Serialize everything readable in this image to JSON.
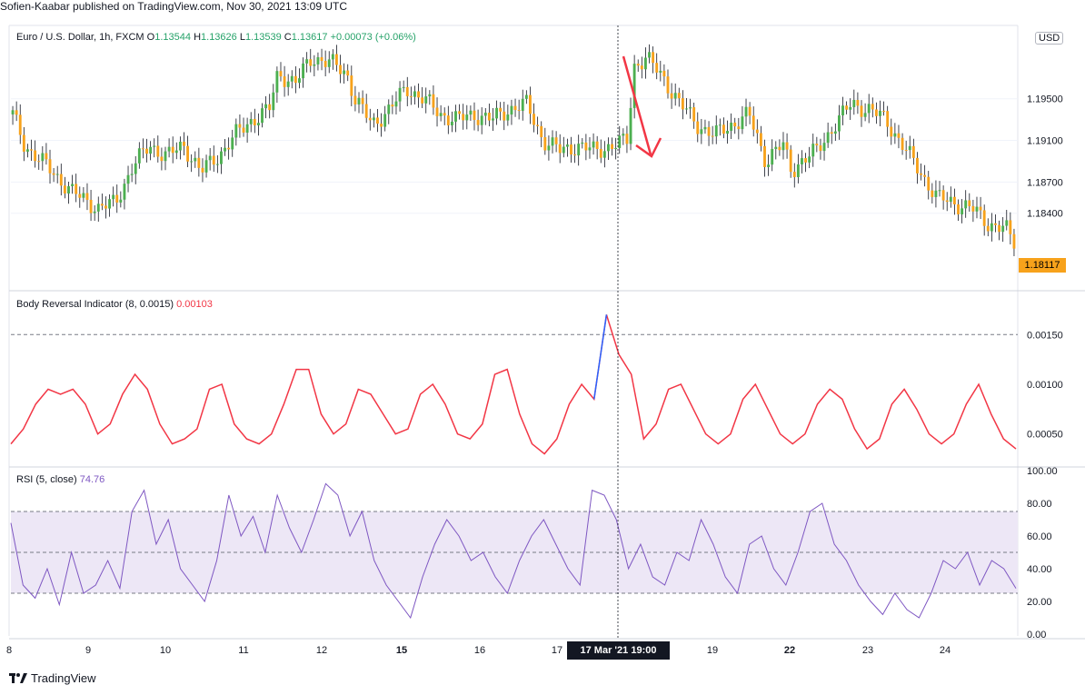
{
  "header": {
    "publisher": "Sofien-Kaabar published on TradingView.com, Nov 30, 2021 13:09 UTC"
  },
  "main_pane": {
    "symbol": "Euro / U.S. Dollar, 1h, FXCM",
    "o_label": "O",
    "o_value": "1.13544",
    "h_label": "H",
    "h_value": "1.13626",
    "l_label": "L",
    "l_value": "1.13539",
    "c_label": "C",
    "c_value": "1.13617",
    "change": "+0.00073 (+0.06%)",
    "currency": "USD",
    "last_price": "1.18117"
  },
  "indicator_pane": {
    "name": "Body Reversal Indicator (8, 0.0015)",
    "value": "0.00103"
  },
  "rsi_pane": {
    "name": "RSI (5, close)",
    "value": "74.76"
  },
  "crosshair_time": "17 Mar '21   19:00",
  "footer": {
    "brand": "TradingView"
  },
  "colors": {
    "up_candle": "#4caf50",
    "down_candle": "#f7a21b",
    "indicator_line": "#f23645",
    "indicator_spike": "#2962ff",
    "rsi_line": "#7e57c2",
    "rsi_band": "#ede7f6",
    "arrow": "#f23645"
  },
  "chart_data": [
    {
      "type": "candlestick",
      "x_axis_labels": [
        "8",
        "9",
        "10",
        "11",
        "12",
        "15",
        "16",
        "17",
        "19",
        "22",
        "23",
        "24"
      ],
      "y_tick_labels": [
        "1.19500",
        "1.19100",
        "1.18700",
        "1.18400"
      ],
      "ylim": [
        1.1783,
        1.201
      ],
      "close_path": [
        [
          0,
          1.1935
        ],
        [
          7,
          1.1905
        ],
        [
          20,
          1.1885
        ],
        [
          35,
          1.186
        ],
        [
          50,
          1.1845
        ],
        [
          60,
          1.185
        ],
        [
          70,
          1.1885
        ],
        [
          80,
          1.1905
        ],
        [
          90,
          1.1895
        ],
        [
          100,
          1.1905
        ],
        [
          110,
          1.188
        ],
        [
          120,
          1.1895
        ],
        [
          130,
          1.1915
        ],
        [
          140,
          1.193
        ],
        [
          150,
          1.194
        ],
        [
          155,
          1.1975
        ],
        [
          165,
          1.1965
        ],
        [
          175,
          1.199
        ],
        [
          185,
          1.1985
        ],
        [
          195,
          1.1975
        ],
        [
          200,
          1.195
        ],
        [
          210,
          1.1925
        ],
        [
          220,
          1.194
        ],
        [
          230,
          1.196
        ],
        [
          240,
          1.195
        ],
        [
          250,
          1.1935
        ],
        [
          260,
          1.193
        ],
        [
          270,
          1.1935
        ],
        [
          280,
          1.193
        ],
        [
          290,
          1.194
        ],
        [
          300,
          1.1945
        ],
        [
          310,
          1.191
        ],
        [
          320,
          1.19
        ],
        [
          330,
          1.1905
        ],
        [
          340,
          1.19
        ],
        [
          350,
          1.1905
        ],
        [
          360,
          1.191
        ],
        [
          362,
          1.198
        ],
        [
          370,
          1.199
        ],
        [
          380,
          1.197
        ],
        [
          390,
          1.1945
        ],
        [
          400,
          1.1925
        ],
        [
          410,
          1.1915
        ],
        [
          420,
          1.1925
        ],
        [
          430,
          1.1935
        ],
        [
          440,
          1.189
        ],
        [
          445,
          1.19
        ],
        [
          450,
          1.1905
        ],
        [
          455,
          1.188
        ],
        [
          460,
          1.189
        ],
        [
          470,
          1.19
        ],
        [
          480,
          1.1925
        ],
        [
          490,
          1.1945
        ],
        [
          500,
          1.194
        ],
        [
          510,
          1.193
        ],
        [
          520,
          1.1905
        ],
        [
          530,
          1.188
        ],
        [
          540,
          1.1855
        ],
        [
          550,
          1.185
        ],
        [
          560,
          1.1845
        ],
        [
          570,
          1.183
        ],
        [
          580,
          1.1825
        ],
        [
          585,
          1.1812
        ]
      ],
      "annotation": "red arrow pointing down after the Mar 17 19:00 spike"
    },
    {
      "type": "line",
      "name": "Body Reversal Indicator (8, 0.0015)",
      "y_tick_labels": [
        "0.00150",
        "0.00100",
        "0.00050"
      ],
      "ylim": [
        0.00025,
        0.00185
      ],
      "reference_line": 0.0015,
      "x_range": [
        0,
        585
      ],
      "values": [
        0.0004,
        0.00055,
        0.0008,
        0.00095,
        0.0009,
        0.00095,
        0.0008,
        0.0005,
        0.0006,
        0.0009,
        0.0011,
        0.00095,
        0.0006,
        0.0004,
        0.00045,
        0.00055,
        0.00095,
        0.001,
        0.0006,
        0.00045,
        0.0004,
        0.0005,
        0.0008,
        0.00115,
        0.00115,
        0.0007,
        0.0005,
        0.0006,
        0.00095,
        0.0009,
        0.0007,
        0.0005,
        0.00055,
        0.0009,
        0.001,
        0.0008,
        0.0005,
        0.00045,
        0.0006,
        0.0011,
        0.00115,
        0.0007,
        0.0004,
        0.0003,
        0.00045,
        0.0008,
        0.001,
        0.00085,
        0.0017,
        0.0013,
        0.0011,
        0.00045,
        0.0006,
        0.00095,
        0.001,
        0.00075,
        0.0005,
        0.0004,
        0.0005,
        0.00085,
        0.001,
        0.00075,
        0.0005,
        0.0004,
        0.0005,
        0.0008,
        0.00095,
        0.00085,
        0.00055,
        0.00035,
        0.00045,
        0.0008,
        0.00095,
        0.00075,
        0.0005,
        0.0004,
        0.0005,
        0.0008,
        0.001,
        0.0007,
        0.00045,
        0.00035
      ]
    },
    {
      "type": "line",
      "name": "RSI (5, close)",
      "y_tick_labels": [
        "100.00",
        "80.00",
        "60.00",
        "40.00",
        "20.00",
        "0.00"
      ],
      "ylim": [
        0,
        100
      ],
      "band": [
        25,
        75
      ],
      "mid_line": 50,
      "x_range": [
        0,
        585
      ],
      "values": [
        68,
        30,
        22,
        40,
        18,
        50,
        25,
        30,
        45,
        28,
        75,
        88,
        55,
        70,
        40,
        30,
        20,
        45,
        85,
        60,
        72,
        50,
        85,
        65,
        50,
        70,
        92,
        85,
        60,
        75,
        45,
        30,
        20,
        10,
        35,
        55,
        70,
        60,
        45,
        50,
        35,
        25,
        45,
        60,
        70,
        55,
        40,
        30,
        88,
        85,
        70,
        40,
        55,
        35,
        30,
        50,
        45,
        70,
        55,
        35,
        25,
        55,
        60,
        40,
        30,
        50,
        75,
        80,
        55,
        45,
        30,
        20,
        12,
        25,
        15,
        10,
        25,
        45,
        40,
        50,
        30,
        45,
        40,
        28
      ]
    }
  ]
}
